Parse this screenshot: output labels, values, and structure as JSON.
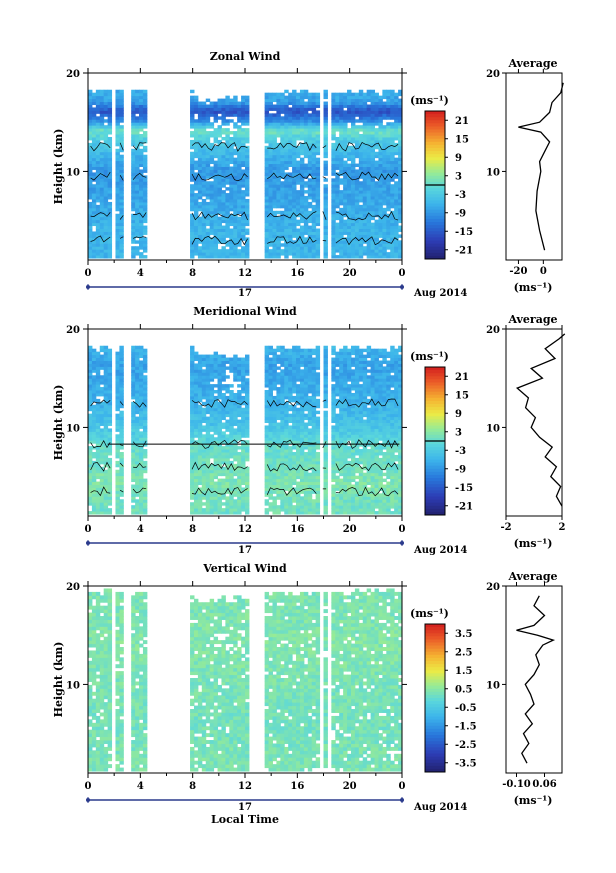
{
  "panels": [
    {
      "title": "Zonal Wind",
      "ylabel": "Height (km)",
      "avg_title": "Average",
      "cb_unit": "(ms⁻¹)",
      "avg_unit": "(ms⁻¹)",
      "date_center": "17",
      "date_right": "Aug 2014"
    },
    {
      "title": "Meridional Wind",
      "ylabel": "Height (km)",
      "avg_title": "Average",
      "cb_unit": "(ms⁻¹)",
      "avg_unit": "(ms⁻¹)",
      "date_center": "17",
      "date_right": "Aug 2014"
    },
    {
      "title": "Vertical Wind",
      "ylabel": "Height (km)",
      "avg_title": "Average",
      "cb_unit": "(ms⁻¹)",
      "avg_unit": "(ms⁻¹)",
      "date_center": "17",
      "date_right": "Aug 2014",
      "xlabel": "Local Time"
    }
  ],
  "chart_data": [
    {
      "type": "heatmap",
      "title": "Zonal Wind",
      "xlabel": "",
      "ylabel": "Height (km)",
      "x_range": [
        0,
        24
      ],
      "y_range": [
        1,
        20
      ],
      "x_ticks": [
        "0",
        "4",
        "8",
        "12",
        "16",
        "20",
        "0"
      ],
      "x_tick_values": [
        0,
        4,
        8,
        12,
        16,
        20,
        24
      ],
      "y_ticks": [
        "10",
        "20"
      ],
      "y_tick_values": [
        10,
        20
      ],
      "colorbar_ticks": [
        "21",
        "15",
        "9",
        "3",
        "-3",
        "-9",
        "-15",
        "-21"
      ],
      "colorbar_range": [
        -24,
        24
      ],
      "data_gaps": [
        [
          1.8,
          2.2
        ],
        [
          2.8,
          3.2
        ],
        [
          4.6,
          7.8
        ],
        [
          12.4,
          13.6
        ],
        [
          17.6,
          17.9
        ],
        [
          18.4,
          18.7
        ]
      ],
      "height_profile_by_km": [
        [
          2,
          -6
        ],
        [
          4,
          -6
        ],
        [
          6,
          -7
        ],
        [
          8,
          -8
        ],
        [
          10,
          -9
        ],
        [
          12,
          -5
        ],
        [
          13,
          -3
        ],
        [
          14,
          1
        ],
        [
          15,
          -10
        ],
        [
          16,
          -16
        ],
        [
          17,
          -8
        ],
        [
          18,
          -7
        ],
        [
          19,
          -6
        ]
      ],
      "average": {
        "title": "Average",
        "xlabel": "(ms⁻¹)",
        "x_ticks": [
          "-20",
          "0"
        ],
        "x_tick_values": [
          -20,
          0
        ],
        "x_range": [
          -30,
          15
        ],
        "y_ticks": [
          "10",
          "20"
        ],
        "y_range": [
          1,
          20
        ],
        "y": [
          2,
          4,
          6,
          8,
          10,
          11,
          12,
          13,
          14,
          14.5,
          15,
          16,
          17,
          18,
          19
        ],
        "x": [
          1,
          -3,
          -6,
          -5,
          -2,
          -3,
          1,
          5,
          -2,
          -20,
          -3,
          5,
          7,
          14,
          16
        ]
      },
      "date_center": "17",
      "date_right": "Aug 2014"
    },
    {
      "type": "heatmap",
      "title": "Meridional Wind",
      "xlabel": "",
      "ylabel": "Height (km)",
      "x_range": [
        0,
        24
      ],
      "y_range": [
        1,
        20
      ],
      "x_ticks": [
        "0",
        "4",
        "8",
        "12",
        "16",
        "20",
        "0"
      ],
      "x_tick_values": [
        0,
        4,
        8,
        12,
        16,
        20,
        24
      ],
      "y_ticks": [
        "10",
        "20"
      ],
      "y_tick_values": [
        10,
        20
      ],
      "colorbar_ticks": [
        "21",
        "15",
        "9",
        "3",
        "-3",
        "-9",
        "-15",
        "-21"
      ],
      "colorbar_range": [
        -24,
        24
      ],
      "data_gaps": [
        [
          1.8,
          2.2
        ],
        [
          2.8,
          3.2
        ],
        [
          4.6,
          7.8
        ],
        [
          12.4,
          13.6
        ],
        [
          17.6,
          17.9
        ],
        [
          18.4,
          18.7
        ]
      ],
      "height_profile_by_km": [
        [
          2,
          1
        ],
        [
          4,
          2
        ],
        [
          6,
          1
        ],
        [
          8,
          0
        ],
        [
          10,
          -4
        ],
        [
          12,
          -6
        ],
        [
          14,
          -7
        ],
        [
          16,
          -8
        ],
        [
          18,
          -6
        ],
        [
          19,
          -5
        ]
      ],
      "average": {
        "title": "Average",
        "xlabel": "(ms⁻¹)",
        "x_ticks": [
          "-2",
          "2"
        ],
        "x_tick_values": [
          -2,
          2
        ],
        "x_range": [
          -2,
          2
        ],
        "y_ticks": [
          "10",
          "20"
        ],
        "y_range": [
          1,
          20
        ],
        "y": [
          2,
          3,
          4,
          5,
          6,
          7,
          8,
          9,
          10,
          11,
          12,
          13,
          14,
          15,
          16,
          17,
          18,
          19,
          19.5
        ],
        "x": [
          2,
          1.6,
          1.9,
          1.2,
          1.6,
          0.8,
          1.3,
          0.4,
          -0.2,
          0.1,
          -0.6,
          -0.4,
          -1.2,
          0.6,
          -0.2,
          1.5,
          0.8,
          1.8,
          2.2
        ]
      },
      "date_center": "17",
      "date_right": "Aug 2014"
    },
    {
      "type": "heatmap",
      "title": "Vertical Wind",
      "xlabel": "Local Time",
      "ylabel": "Height (km)",
      "x_range": [
        0,
        24
      ],
      "y_range": [
        1,
        20
      ],
      "x_ticks": [
        "0",
        "4",
        "8",
        "12",
        "16",
        "20",
        "0"
      ],
      "x_tick_values": [
        0,
        4,
        8,
        12,
        16,
        20,
        24
      ],
      "y_ticks": [
        "10",
        "20"
      ],
      "y_tick_values": [
        10,
        20
      ],
      "colorbar_ticks": [
        "3.5",
        "2.5",
        "1.5",
        "0.5",
        "-0.5",
        "-1.5",
        "-2.5",
        "-3.5"
      ],
      "colorbar_range": [
        -4,
        4
      ],
      "data_gaps": [
        [
          1.8,
          2.2
        ],
        [
          2.8,
          3.2
        ],
        [
          4.6,
          7.8
        ],
        [
          12.4,
          13.6
        ],
        [
          17.6,
          17.9
        ],
        [
          18.4,
          18.7
        ]
      ],
      "height_profile_by_km": [
        [
          2,
          0.3
        ],
        [
          6,
          0.2
        ],
        [
          10,
          0.3
        ],
        [
          14,
          0.4
        ],
        [
          18,
          0.3
        ]
      ],
      "average": {
        "title": "Average",
        "xlabel": "(ms⁻¹)",
        "x_ticks": [
          "-0.10",
          "0.06"
        ],
        "x_tick_values": [
          -0.1,
          0.06
        ],
        "x_range": [
          -0.16,
          0.16
        ],
        "y_ticks": [
          "10",
          "20"
        ],
        "y_range": [
          1,
          20
        ],
        "y": [
          2,
          3,
          4,
          5,
          6,
          7,
          8,
          9,
          10,
          11,
          12,
          13,
          14,
          14.5,
          15,
          15.5,
          16,
          17,
          18,
          19
        ],
        "x": [
          -0.04,
          -0.07,
          -0.03,
          -0.06,
          -0.01,
          -0.05,
          0.0,
          -0.02,
          -0.05,
          0.0,
          0.03,
          0.01,
          0.05,
          0.11,
          0.02,
          -0.1,
          0.0,
          0.06,
          0.0,
          0.03
        ]
      },
      "date_center": "17",
      "date_right": "Aug 2014"
    }
  ]
}
